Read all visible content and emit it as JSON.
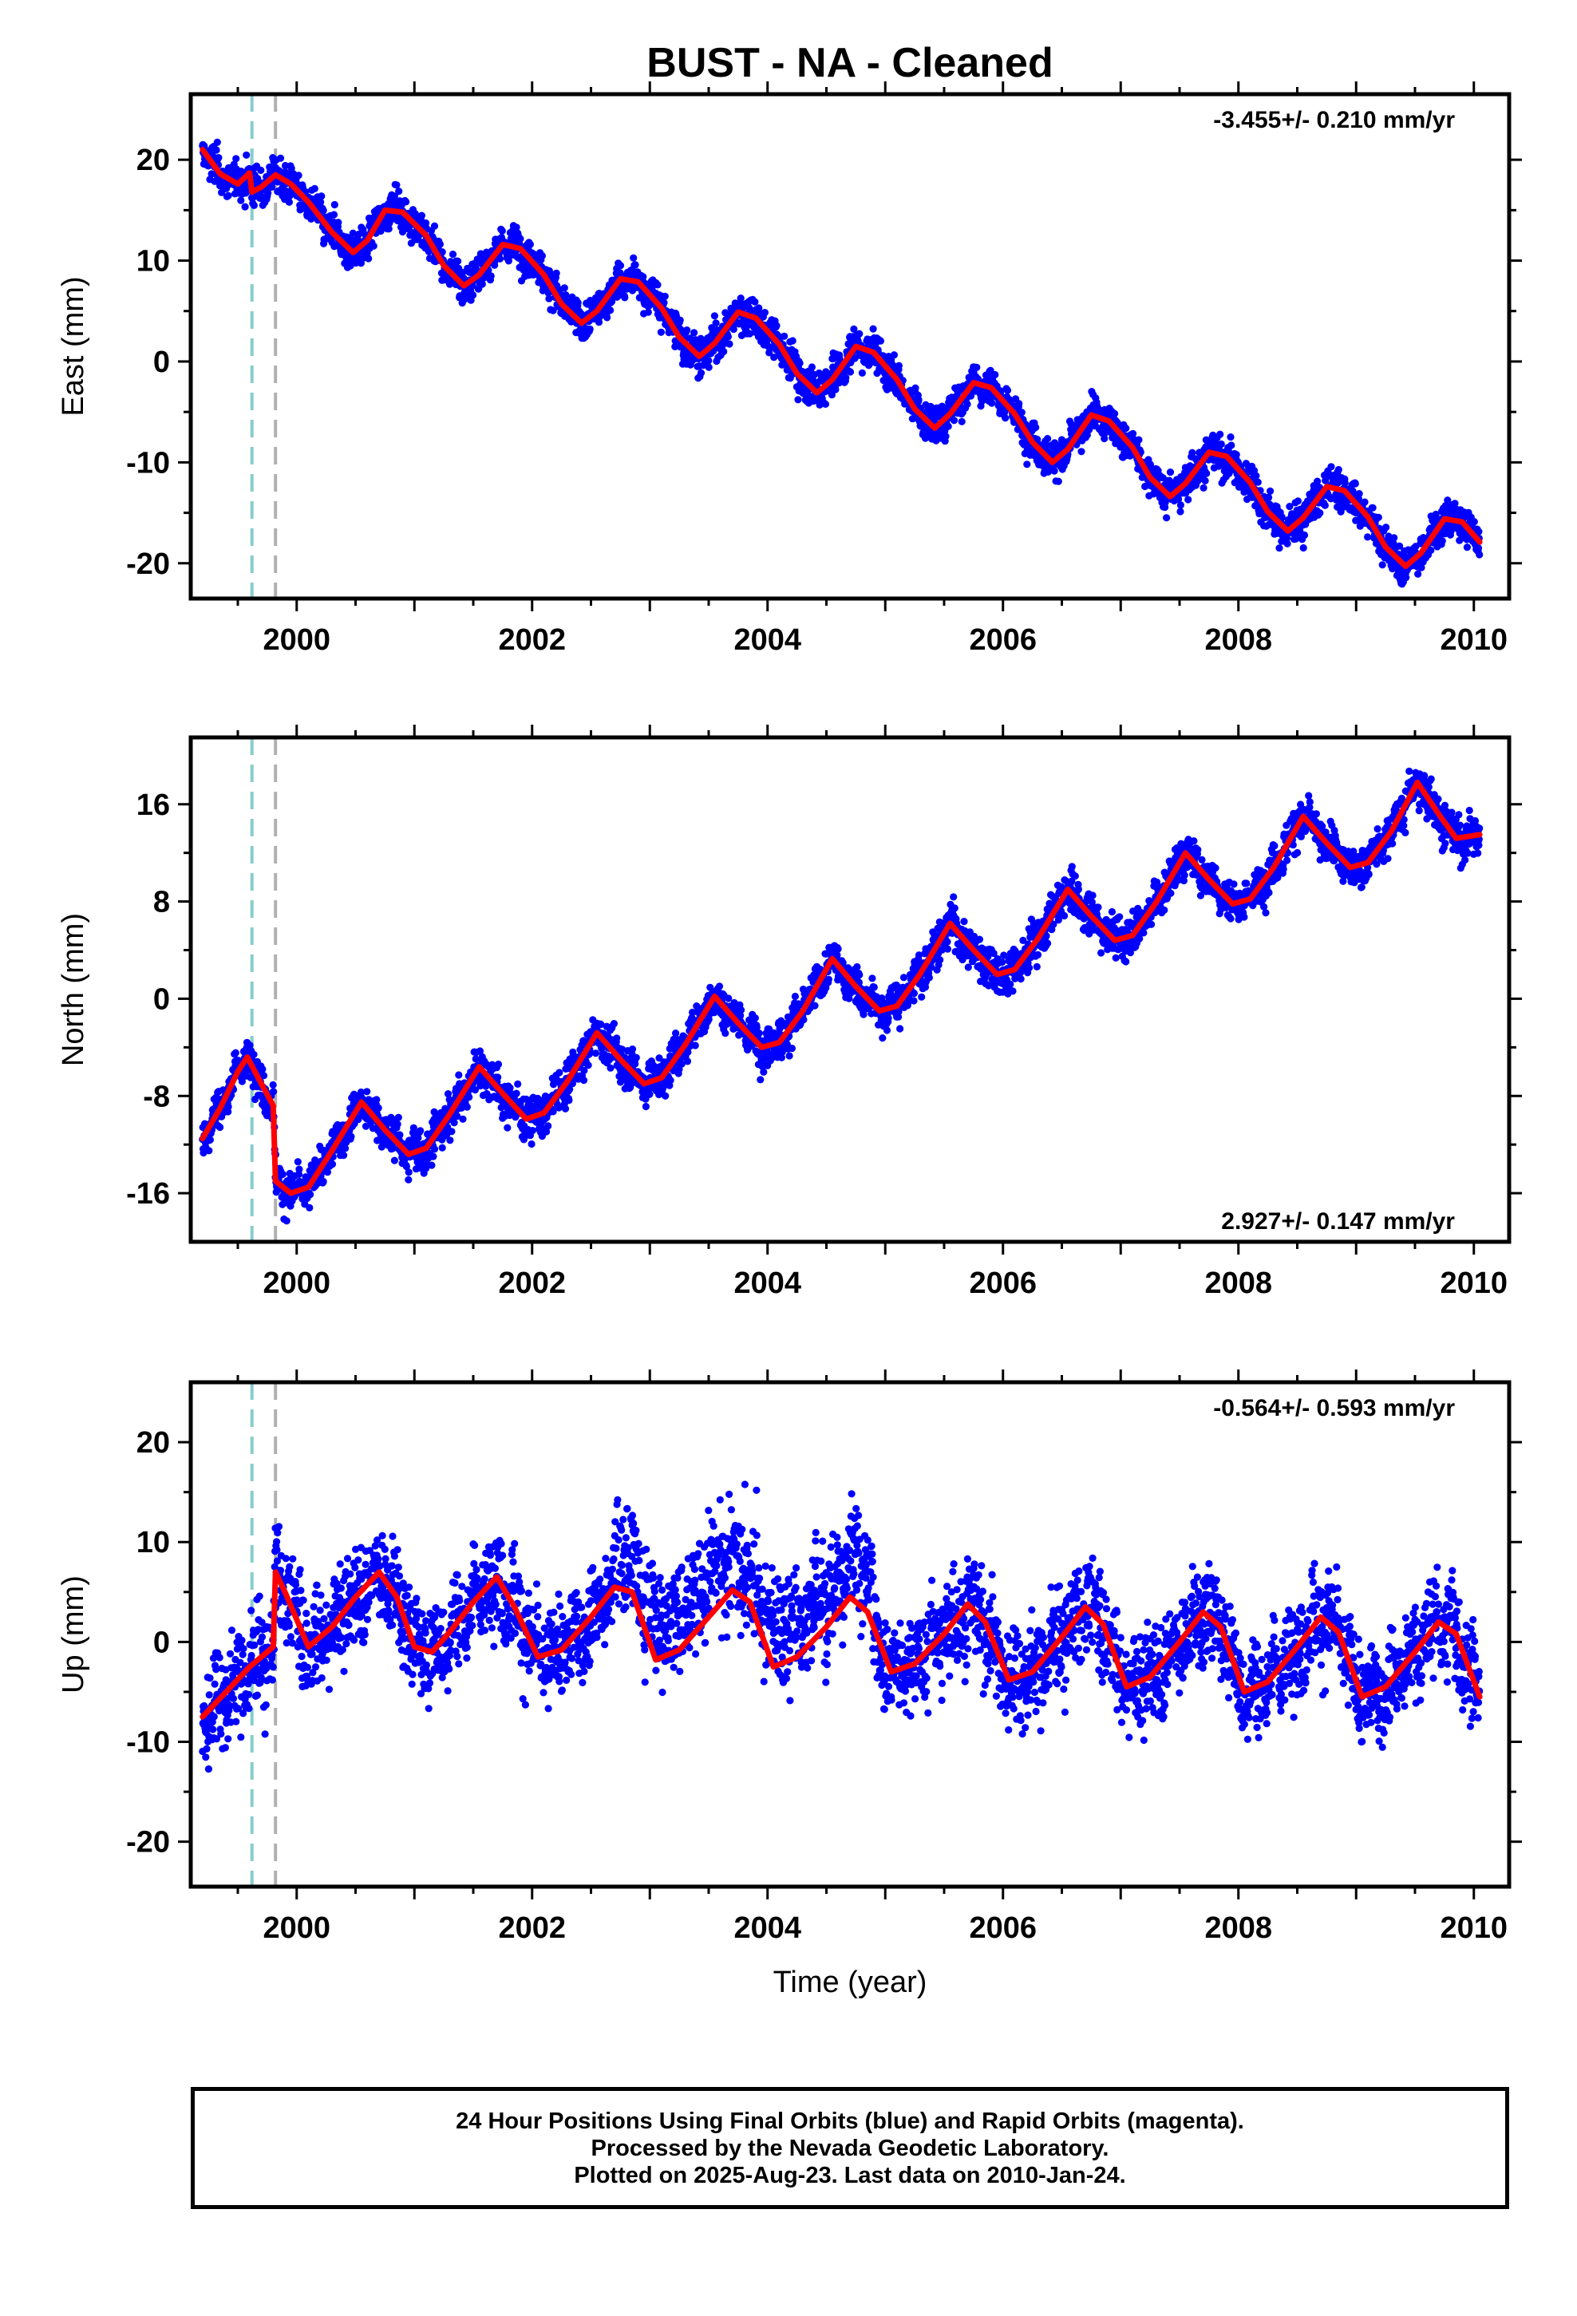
{
  "title": "BUST  - NA - Cleaned",
  "colors": {
    "points": "#0000ff",
    "model": "#ff0000",
    "offset_line_1": "#88cccc",
    "offset_line_2": "#b0b0b0",
    "frame": "#000000"
  },
  "footer": {
    "line1": "24 Hour Positions Using Final Orbits (blue) and Rapid Orbits (magenta).",
    "line2": "Processed by the Nevada Geodetic Laboratory.",
    "line3": "Plotted on 2025-Aug-23. Last data on 2010-Jan-24."
  },
  "chart_data": [
    {
      "type": "scatter",
      "component": "east",
      "ylabel": "East (mm)",
      "xlabel": "",
      "rate_label": "-3.455+/- 0.210 mm/yr",
      "rate_placement": "top-right",
      "xlim": [
        1999.1,
        2010.3
      ],
      "ylim": [
        -23.5,
        26.5
      ],
      "xticks": [
        2000,
        2002,
        2004,
        2006,
        2008,
        2010
      ],
      "yticks": [
        20,
        10,
        0,
        -10,
        -20
      ],
      "offset_epochs": [
        1999.62,
        1999.82
      ],
      "model": {
        "x": [
          1999.2,
          1999.35,
          1999.5,
          1999.6,
          1999.62,
          1999.7,
          1999.82,
          1999.95,
          2000.1,
          2000.3,
          2000.48,
          2000.6,
          2000.75,
          2000.9,
          2001.1,
          2001.25,
          2001.42,
          2001.55,
          2001.75,
          2001.9,
          2002.1,
          2002.25,
          2002.42,
          2002.55,
          2002.75,
          2002.9,
          2003.1,
          2003.25,
          2003.42,
          2003.55,
          2003.75,
          2003.9,
          2004.1,
          2004.25,
          2004.42,
          2004.55,
          2004.75,
          2004.9,
          2005.1,
          2005.25,
          2005.42,
          2005.55,
          2005.75,
          2005.9,
          2006.1,
          2006.25,
          2006.42,
          2006.55,
          2006.75,
          2006.9,
          2007.1,
          2007.25,
          2007.42,
          2007.55,
          2007.75,
          2007.9,
          2008.1,
          2008.25,
          2008.42,
          2008.55,
          2008.75,
          2008.9,
          2009.1,
          2009.25,
          2009.42,
          2009.55,
          2009.75,
          2009.9,
          2010.05
        ],
        "y": [
          21.0,
          18.6,
          17.6,
          18.7,
          16.8,
          17.3,
          18.5,
          17.6,
          15.8,
          12.8,
          10.8,
          12.0,
          15.0,
          14.8,
          12.5,
          9.5,
          7.5,
          8.6,
          11.6,
          11.2,
          8.6,
          5.7,
          3.8,
          5.0,
          8.2,
          7.9,
          5.3,
          2.4,
          0.5,
          1.8,
          4.9,
          4.3,
          1.7,
          -1.2,
          -3.1,
          -1.8,
          1.5,
          0.9,
          -1.8,
          -4.7,
          -6.6,
          -5.2,
          -2.1,
          -2.6,
          -5.2,
          -8.0,
          -10.0,
          -8.7,
          -5.3,
          -5.9,
          -8.5,
          -11.5,
          -13.4,
          -12.1,
          -9.0,
          -9.4,
          -12.0,
          -14.9,
          -16.8,
          -15.5,
          -12.4,
          -12.8,
          -15.4,
          -18.4,
          -20.3,
          -19.0,
          -15.6,
          -15.9,
          -17.9
        ]
      }
    },
    {
      "type": "scatter",
      "component": "north",
      "ylabel": "North (mm)",
      "xlabel": "",
      "rate_label": "2.927+/- 0.147 mm/yr",
      "rate_placement": "bottom-right",
      "xlim": [
        1999.1,
        2010.3
      ],
      "ylim": [
        -20,
        21.5
      ],
      "xticks": [
        2000,
        2002,
        2004,
        2006,
        2008,
        2010
      ],
      "yticks": [
        16,
        8,
        0,
        -8,
        -16
      ],
      "offset_epochs": [
        1999.62,
        1999.82
      ],
      "model": {
        "x": [
          1999.2,
          1999.35,
          1999.5,
          1999.58,
          1999.7,
          1999.8,
          1999.82,
          1999.95,
          2000.1,
          2000.3,
          2000.55,
          2000.75,
          2000.95,
          2001.1,
          2001.3,
          2001.55,
          2001.75,
          2001.95,
          2002.1,
          2002.3,
          2002.55,
          2002.75,
          2002.95,
          2003.1,
          2003.3,
          2003.55,
          2003.75,
          2003.95,
          2004.1,
          2004.3,
          2004.55,
          2004.75,
          2004.95,
          2005.1,
          2005.3,
          2005.55,
          2005.75,
          2005.95,
          2006.1,
          2006.3,
          2006.55,
          2006.75,
          2006.95,
          2007.1,
          2007.3,
          2007.55,
          2007.75,
          2007.95,
          2008.1,
          2008.3,
          2008.55,
          2008.75,
          2008.95,
          2009.1,
          2009.3,
          2009.52,
          2009.7,
          2009.85,
          2010.05
        ],
        "y": [
          -11.5,
          -9.0,
          -6.0,
          -4.8,
          -7.0,
          -8.8,
          -15.0,
          -16.0,
          -15.5,
          -12.5,
          -8.5,
          -10.8,
          -12.8,
          -12.3,
          -9.5,
          -5.6,
          -7.8,
          -9.9,
          -9.4,
          -6.8,
          -2.8,
          -5.0,
          -7.0,
          -6.5,
          -3.8,
          0.2,
          -2.0,
          -4.0,
          -3.6,
          -1.0,
          3.3,
          1.0,
          -1.0,
          -0.6,
          2.1,
          6.2,
          4.0,
          2.0,
          2.4,
          5.0,
          9.0,
          6.8,
          4.8,
          5.2,
          7.9,
          12.0,
          9.8,
          7.8,
          8.2,
          10.8,
          15.0,
          12.8,
          10.8,
          11.2,
          13.8,
          17.8,
          15.2,
          13.2,
          13.5
        ]
      }
    },
    {
      "type": "scatter",
      "component": "up",
      "ylabel": "Up (mm)",
      "xlabel": "Time (year)",
      "rate_label": "-0.564+/- 0.593 mm/yr",
      "rate_placement": "top-right",
      "xlim": [
        1999.1,
        2010.3
      ],
      "ylim": [
        -24.5,
        26
      ],
      "xticks": [
        2000,
        2002,
        2004,
        2006,
        2008,
        2010
      ],
      "yticks": [
        20,
        10,
        0,
        -10,
        -20
      ],
      "offset_epochs": [
        1999.62,
        1999.82
      ],
      "model": {
        "x": [
          1999.2,
          1999.4,
          1999.6,
          1999.8,
          1999.82,
          1999.9,
          2000.1,
          2000.3,
          2000.5,
          2000.7,
          2000.85,
          2001.0,
          2001.15,
          2001.3,
          2001.5,
          2001.7,
          2001.85,
          2002.05,
          2002.25,
          2002.5,
          2002.7,
          2002.85,
          2003.05,
          2003.25,
          2003.5,
          2003.7,
          2003.85,
          2004.05,
          2004.25,
          2004.5,
          2004.7,
          2004.85,
          2005.05,
          2005.25,
          2005.5,
          2005.7,
          2005.85,
          2006.05,
          2006.25,
          2006.5,
          2006.7,
          2006.85,
          2007.05,
          2007.25,
          2007.5,
          2007.7,
          2007.85,
          2008.05,
          2008.25,
          2008.5,
          2008.7,
          2008.85,
          2009.05,
          2009.25,
          2009.5,
          2009.7,
          2009.85,
          2010.05
        ],
        "y": [
          -7.5,
          -5.0,
          -2.5,
          -0.5,
          7.0,
          5.0,
          -0.5,
          1.5,
          4.5,
          7.0,
          4.5,
          -0.5,
          -1.0,
          1.0,
          4.0,
          6.5,
          3.5,
          -1.5,
          -0.8,
          2.5,
          5.5,
          5.0,
          -1.8,
          -0.8,
          2.5,
          5.2,
          4.0,
          -2.5,
          -1.5,
          1.5,
          4.5,
          3.0,
          -3.0,
          -2.2,
          0.8,
          3.8,
          2.0,
          -3.8,
          -3.0,
          0.5,
          3.5,
          1.8,
          -4.5,
          -3.5,
          0.0,
          3.0,
          1.5,
          -5.0,
          -4.0,
          -0.5,
          2.5,
          1.0,
          -5.5,
          -4.5,
          -1.0,
          2.0,
          0.8,
          -5.5
        ]
      }
    }
  ]
}
